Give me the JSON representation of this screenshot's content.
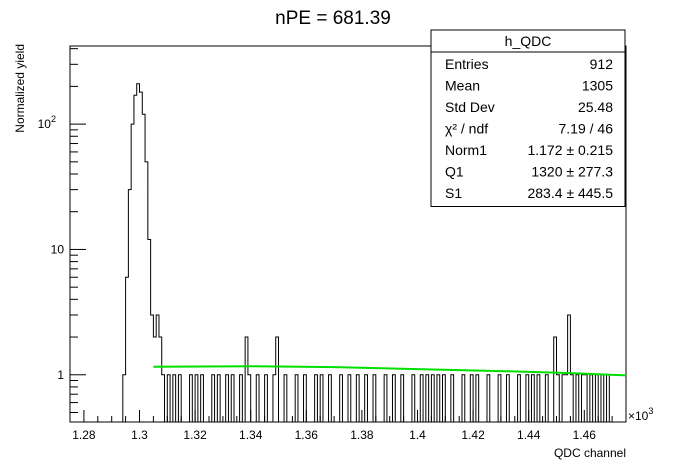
{
  "chart_data": {
    "type": "histogram",
    "title": "nPE = 681.39",
    "xlabel": "QDC channel",
    "ylabel": "Normalized yield",
    "x_multiplier_label": "×10",
    "x_multiplier_exp": "3",
    "xlim": [
      1.275,
      1.475
    ],
    "ylim": [
      0.42,
      420
    ],
    "log_y": true,
    "grid": false,
    "x_ticks": [
      "1.28",
      "1.3",
      "1.32",
      "1.34",
      "1.36",
      "1.38",
      "1.4",
      "1.42",
      "1.44",
      "1.46"
    ],
    "y_ticks": [
      {
        "value": 1,
        "label": "1"
      },
      {
        "value": 10,
        "label": "10"
      },
      {
        "value": 100,
        "label": "10",
        "sup": "2"
      }
    ],
    "bin_width": 0.001,
    "bins": [
      [
        1.294,
        1
      ],
      [
        1.295,
        6
      ],
      [
        1.296,
        30
      ],
      [
        1.297,
        100
      ],
      [
        1.298,
        170
      ],
      [
        1.299,
        210
      ],
      [
        1.3,
        180
      ],
      [
        1.301,
        120
      ],
      [
        1.302,
        50
      ],
      [
        1.303,
        12
      ],
      [
        1.304,
        3
      ],
      [
        1.305,
        2
      ],
      [
        1.306,
        3
      ],
      [
        1.307,
        2
      ],
      [
        1.308,
        1
      ],
      [
        1.31,
        1
      ],
      [
        1.312,
        1
      ],
      [
        1.314,
        1
      ],
      [
        1.318,
        1
      ],
      [
        1.32,
        1
      ],
      [
        1.322,
        1
      ],
      [
        1.326,
        1
      ],
      [
        1.328,
        1
      ],
      [
        1.331,
        1
      ],
      [
        1.333,
        1
      ],
      [
        1.336,
        1
      ],
      [
        1.338,
        2
      ],
      [
        1.339,
        1
      ],
      [
        1.342,
        1
      ],
      [
        1.345,
        1
      ],
      [
        1.348,
        1
      ],
      [
        1.349,
        2
      ],
      [
        1.352,
        1
      ],
      [
        1.356,
        1
      ],
      [
        1.359,
        1
      ],
      [
        1.363,
        1
      ],
      [
        1.365,
        1
      ],
      [
        1.368,
        1
      ],
      [
        1.372,
        1
      ],
      [
        1.375,
        1
      ],
      [
        1.378,
        1
      ],
      [
        1.381,
        1
      ],
      [
        1.384,
        1
      ],
      [
        1.388,
        1
      ],
      [
        1.391,
        1
      ],
      [
        1.394,
        1
      ],
      [
        1.398,
        1
      ],
      [
        1.401,
        1
      ],
      [
        1.403,
        1
      ],
      [
        1.405,
        1
      ],
      [
        1.407,
        1
      ],
      [
        1.409,
        1
      ],
      [
        1.412,
        1
      ],
      [
        1.416,
        1
      ],
      [
        1.419,
        1
      ],
      [
        1.421,
        1
      ],
      [
        1.425,
        1
      ],
      [
        1.429,
        1
      ],
      [
        1.432,
        1
      ],
      [
        1.436,
        1
      ],
      [
        1.439,
        1
      ],
      [
        1.441,
        1
      ],
      [
        1.443,
        1
      ],
      [
        1.446,
        1
      ],
      [
        1.449,
        2
      ],
      [
        1.45,
        1
      ],
      [
        1.452,
        1
      ],
      [
        1.453,
        1
      ],
      [
        1.454,
        3
      ],
      [
        1.455,
        1
      ],
      [
        1.457,
        1
      ],
      [
        1.459,
        1
      ],
      [
        1.46,
        1
      ],
      [
        1.462,
        1
      ],
      [
        1.464,
        1
      ],
      [
        1.466,
        1
      ],
      [
        1.468,
        1
      ]
    ],
    "fit": {
      "color": "#00e000",
      "x_start": 1.305,
      "x_end": 1.475,
      "points": [
        [
          1.305,
          1.16
        ],
        [
          1.34,
          1.17
        ],
        [
          1.37,
          1.15
        ],
        [
          1.4,
          1.11
        ],
        [
          1.43,
          1.07
        ],
        [
          1.455,
          1.03
        ],
        [
          1.475,
          0.99
        ]
      ]
    },
    "stats_box": {
      "title": "h_QDC",
      "rows": [
        {
          "label": "Entries",
          "value": "912"
        },
        {
          "label": "Mean",
          "value": "1305"
        },
        {
          "label": "Std Dev",
          "value": "25.48"
        },
        {
          "label": "χ² / ndf",
          "value": "7.19 / 46"
        },
        {
          "label": "Norm1",
          "value": "1.172 ± 0.215"
        },
        {
          "label": "Q1",
          "value": "1320 ± 277.3"
        },
        {
          "label": "S1",
          "value": "283.4 ± 445.5"
        }
      ]
    }
  }
}
